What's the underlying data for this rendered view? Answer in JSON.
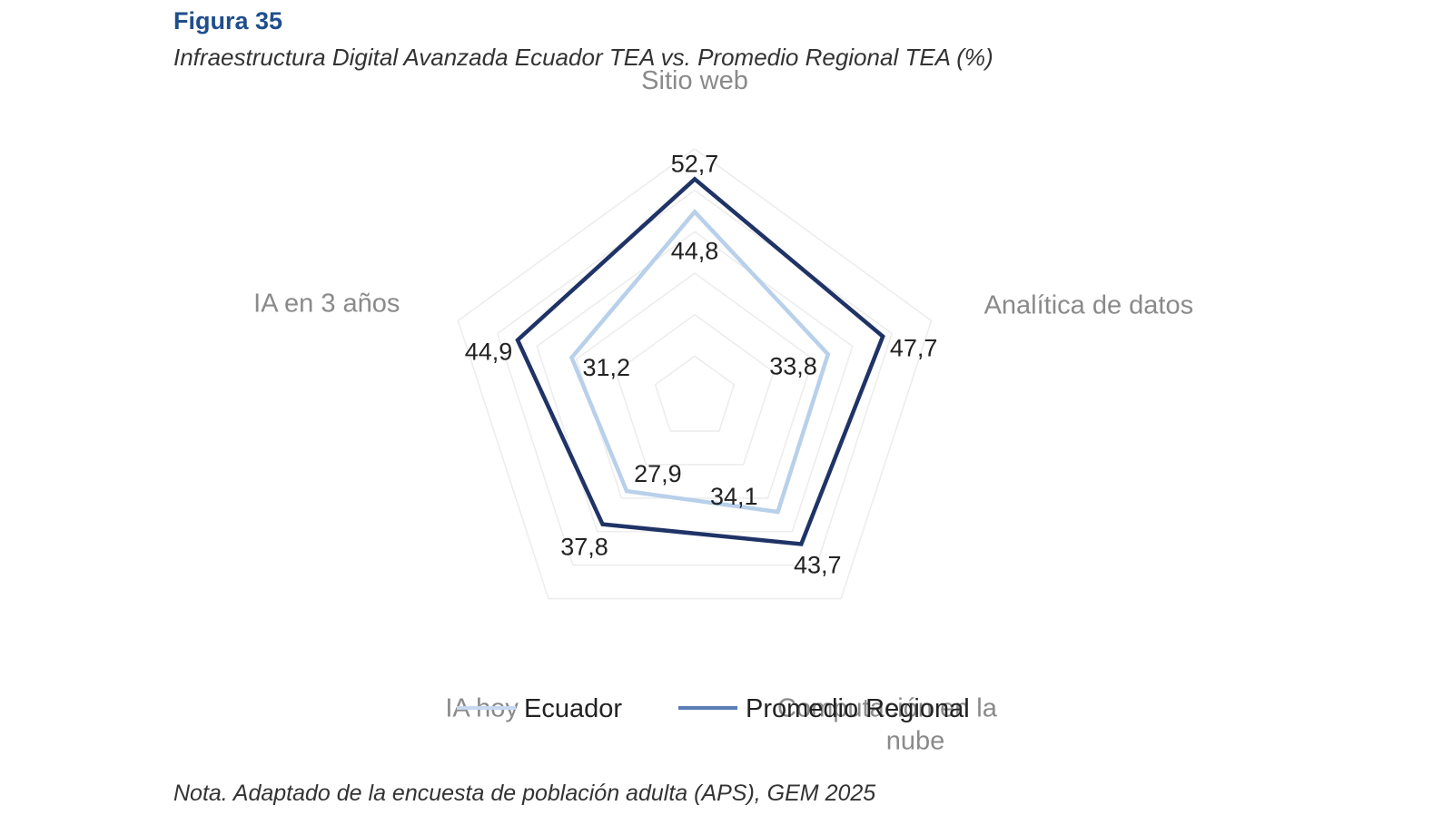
{
  "figure": {
    "label": "Figura 35",
    "title": "Infraestructura Digital Avanzada Ecuador TEA vs. Promedio Regional TEA (%)",
    "note": "Nota. Adaptado de la encuesta de población adulta (APS), GEM 2025"
  },
  "chart_data": {
    "type": "radar",
    "categories": [
      "Sitio web",
      "Analítica de datos",
      "Computación en la nube",
      "IA hoy",
      "IA en 3 años"
    ],
    "series": [
      {
        "name": "Ecuador",
        "values": [
          44.8,
          33.8,
          34.1,
          27.9,
          31.2
        ],
        "color": "#b8d0ea"
      },
      {
        "name": "Promedio Regional",
        "values": [
          52.7,
          47.7,
          43.7,
          37.8,
          44.9
        ],
        "color": "#1f3366"
      }
    ],
    "value_labels": {
      "Ecuador": [
        "44,8",
        "33,8",
        "34,1",
        "27,9",
        "31,2"
      ],
      "Promedio Regional": [
        "52,7",
        "47,7",
        "43,7",
        "37,8",
        "44,9"
      ]
    },
    "legend_colors": {
      "Ecuador": "#c5d9ef",
      "Promedio Regional": "#5b7db5"
    },
    "grid": true,
    "legend_position": "bottom"
  }
}
